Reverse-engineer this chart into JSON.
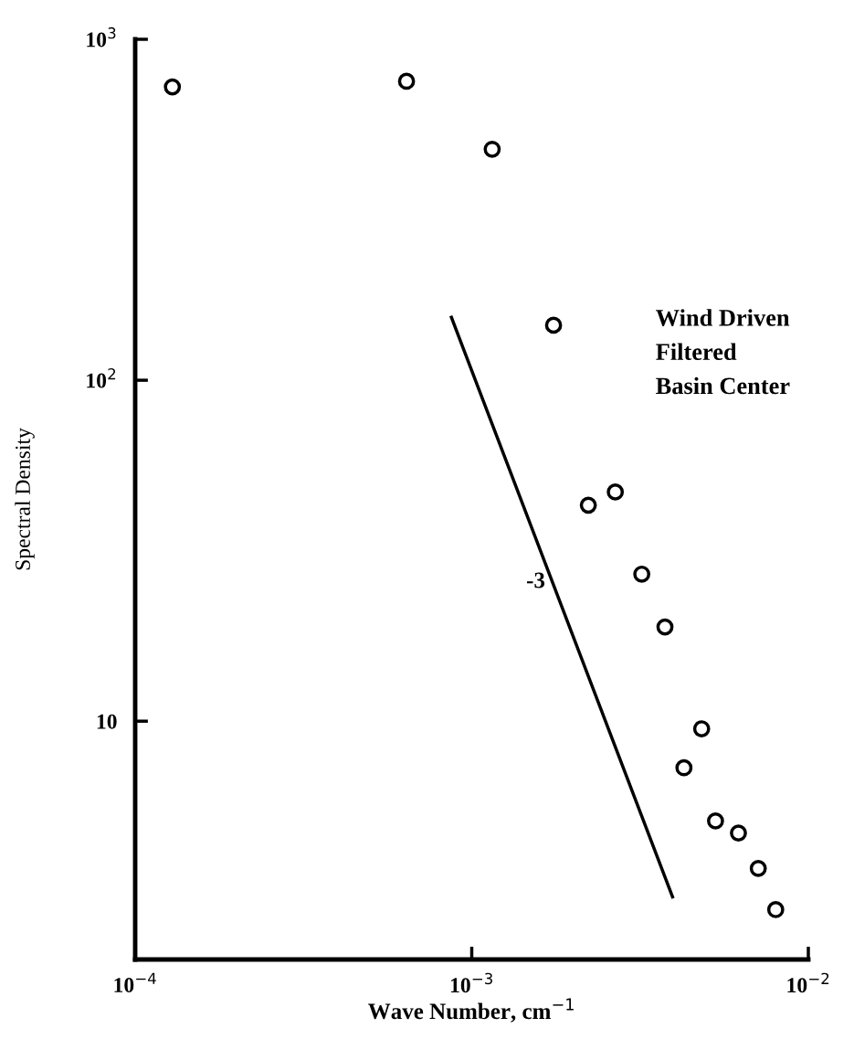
{
  "chart_data": {
    "type": "scatter",
    "xlabel": "Wave Number, cm$^{−1}$",
    "ylabel": "Spectral Density",
    "log": "xy",
    "grid": false,
    "xlim": [
      0.0001,
      0.01
    ],
    "ylim": [
      2,
      1000
    ],
    "xticks": [
      {
        "value": 0.0001,
        "label": "10$^{−4}$"
      },
      {
        "value": 0.001,
        "label": "10$^{−3}$"
      },
      {
        "value": 0.01,
        "label": "10$^{−2}$"
      }
    ],
    "yticks": [
      {
        "value": 10,
        "label": "10"
      },
      {
        "value": 100,
        "label": "10$^{2}$"
      },
      {
        "value": 1000,
        "label": "10$^{3}$"
      }
    ],
    "series": [
      {
        "marker": "circle",
        "color": "#000000",
        "x": [
          0.000129,
          0.00064,
          0.00115,
          0.00175,
          0.00222,
          0.00267,
          0.0032,
          0.00375,
          0.00482,
          0.00427,
          0.0053,
          0.0062,
          0.0071,
          0.008
        ],
        "values": [
          725,
          753,
          476,
          145,
          43,
          47,
          27,
          18.9,
          9.5,
          7.3,
          5.1,
          4.7,
          3.7,
          2.8
        ]
      },
      {
        "type": "line",
        "color": "#000000",
        "x": [
          0.00087,
          0.00395
        ],
        "values": [
          153,
          3.05
        ]
      }
    ],
    "annotations": [
      "-3",
      "Wind Driven",
      "Filtered",
      "Basin Center"
    ]
  }
}
